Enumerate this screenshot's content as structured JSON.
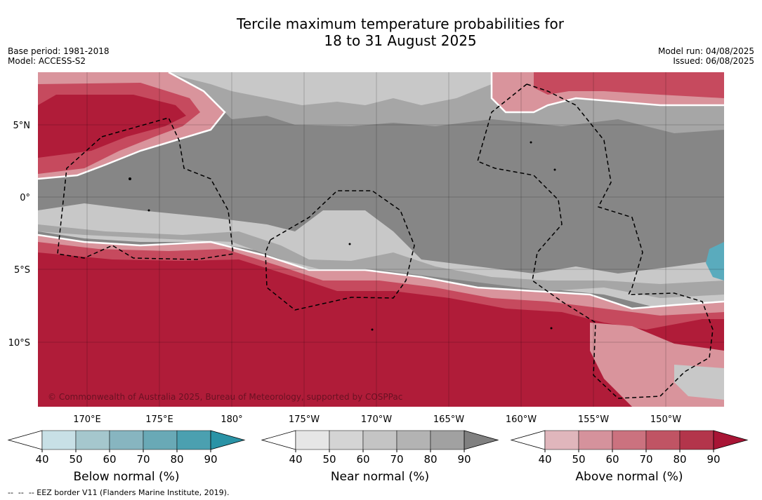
{
  "title": {
    "line1": "Tercile maximum temperature probabilities for",
    "line2": "18 to 31 August 2025"
  },
  "meta": {
    "base_period": "Base period: 1981-2018",
    "model": "Model: ACCESS-S2",
    "model_run": "Model run: 04/08/2025",
    "issued": "Issued: 06/08/2025"
  },
  "map": {
    "lat_ticks": [
      "5°N",
      "0°",
      "5°S",
      "10°S"
    ],
    "lon_ticks": [
      "170°E",
      "175°E",
      "180°",
      "175°W",
      "170°W",
      "165°W",
      "160°W",
      "155°W",
      "150°W"
    ],
    "credit": "© Commonwealth of Australia 2025, Bureau of Meteorology, supported by COSPPac",
    "colors": {
      "near_dark": "#858585",
      "near_mid": "#a6a6a6",
      "near_light": "#c8c8c8",
      "above_strong": "#b01c39",
      "above_mid": "#c64a5e",
      "above_light": "#d9949c",
      "below": "#5aabbd"
    }
  },
  "colorbars": [
    {
      "name": "Below normal (%)",
      "ticks": [
        "40",
        "50",
        "60",
        "70",
        "80",
        "90"
      ],
      "colors": [
        "#ffffff",
        "#c8e0e6",
        "#a5c7cd",
        "#87b5c0",
        "#69a9b6",
        "#4ba0b0",
        "#2a93a6"
      ]
    },
    {
      "name": "Near normal (%)",
      "ticks": [
        "40",
        "50",
        "60",
        "70",
        "80",
        "90"
      ],
      "colors": [
        "#ffffff",
        "#e6e6e6",
        "#d4d4d4",
        "#c4c4c4",
        "#b3b3b3",
        "#a1a1a1",
        "#808080"
      ]
    },
    {
      "name": "Above normal (%)",
      "ticks": [
        "40",
        "50",
        "60",
        "70",
        "80",
        "90"
      ],
      "colors": [
        "#ffffff",
        "#e0b6bc",
        "#d5929c",
        "#cb727f",
        "#c05464",
        "#b3354b",
        "#a81535"
      ]
    }
  ],
  "footer": "--  --  -- EEZ border V11 (Flanders Marine Institute, 2019)."
}
